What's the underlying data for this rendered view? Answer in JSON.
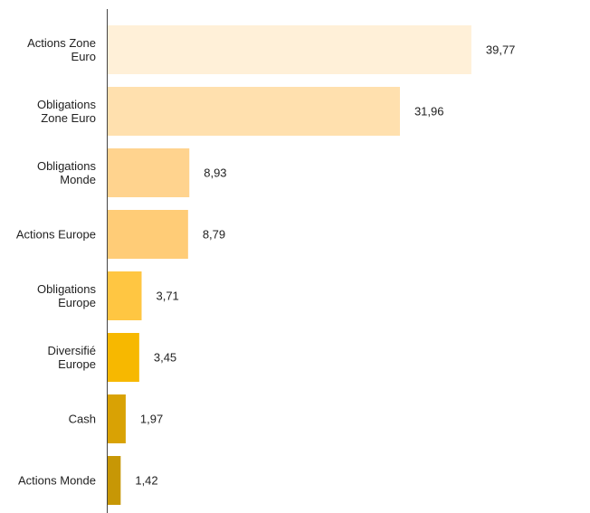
{
  "chart_data": {
    "type": "bar",
    "orientation": "horizontal",
    "title": "",
    "xlabel": "",
    "ylabel": "",
    "grid": false,
    "xlim": [
      0,
      47.5
    ],
    "categories": [
      [
        "Actions Zone",
        "Euro"
      ],
      [
        "Obligations",
        "Zone Euro"
      ],
      [
        "Obligations",
        "Monde"
      ],
      [
        "Actions Europe"
      ],
      [
        "Obligations",
        "Europe"
      ],
      [
        "Diversifié",
        "Europe"
      ],
      [
        "Cash"
      ],
      [
        "Actions Monde"
      ]
    ],
    "values": [
      39.77,
      31.96,
      8.93,
      8.79,
      3.71,
      3.45,
      1.97,
      1.42
    ],
    "value_labels": [
      "39,77",
      "31,96",
      "8,93",
      "8,79",
      "3,71",
      "3,45",
      "1,97",
      "1,42"
    ],
    "colors": [
      "#FFF0D8",
      "#FFE0AE",
      "#FFD38E",
      "#FFCC77",
      "#FFC642",
      "#F7B800",
      "#D9A204",
      "#C79705"
    ]
  }
}
